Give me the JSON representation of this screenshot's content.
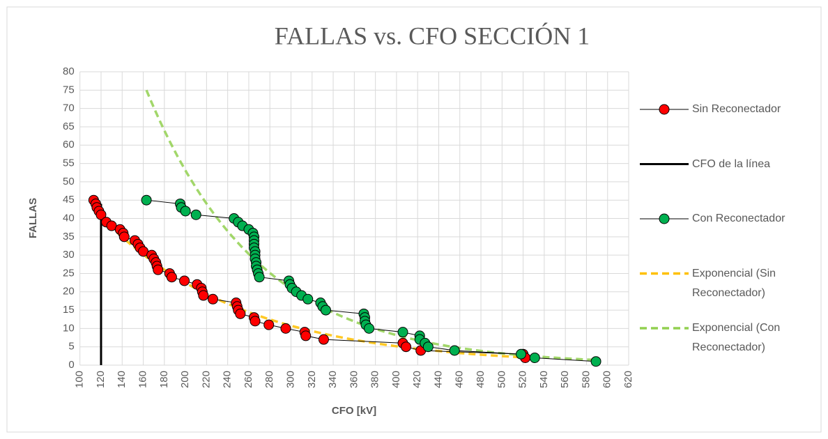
{
  "chart_data": {
    "type": "scatter",
    "title": "FALLAS vs. CFO SECCIÓN 1",
    "x_label": "CFO [kV]",
    "y_label": "FALLAS",
    "xlim": [
      100,
      620
    ],
    "xticks": [
      100,
      120,
      140,
      160,
      180,
      200,
      220,
      240,
      260,
      280,
      300,
      320,
      340,
      360,
      380,
      400,
      420,
      440,
      460,
      480,
      500,
      520,
      540,
      560,
      580,
      600,
      620
    ],
    "ylim": [
      0,
      80
    ],
    "yticks": [
      0,
      5,
      10,
      15,
      20,
      25,
      30,
      35,
      40,
      45,
      50,
      55,
      60,
      65,
      70,
      75,
      80
    ],
    "grid": true,
    "legend": "right",
    "series": [
      {
        "name": "Sin Reconectador",
        "color": "#ff0000",
        "markers": true,
        "x": [
          113,
          115,
          116,
          118,
          120,
          125,
          130,
          138,
          141,
          142,
          152,
          155,
          157,
          160,
          168,
          170,
          172,
          173,
          174,
          185,
          187,
          199,
          211,
          215,
          216,
          217,
          226,
          248,
          249,
          250,
          252,
          265,
          266,
          279,
          295,
          313,
          314,
          331,
          406,
          409,
          423,
          520,
          522
        ],
        "values": [
          45,
          44,
          43,
          42,
          41,
          39,
          38,
          37,
          36,
          35,
          34,
          33,
          32,
          31,
          30,
          29,
          28,
          27,
          26,
          25,
          24,
          23,
          22,
          21,
          20,
          19,
          18,
          17,
          16,
          15,
          14,
          13,
          12,
          11,
          10,
          9,
          8,
          7,
          6,
          5,
          4,
          3,
          2
        ],
        "trendline": {
          "type": "exponential",
          "name": "Exponencial (Sin Reconectador)",
          "color": "#ffc000"
        }
      },
      {
        "name": "CFO de la línea",
        "color": "#000000",
        "markers": false,
        "x": [
          120,
          120
        ],
        "values": [
          0,
          44
        ]
      },
      {
        "name": "Con Reconectador",
        "color": "#00b050",
        "markers": true,
        "x": [
          163,
          195,
          196,
          200,
          210,
          246,
          250,
          254,
          260,
          264,
          265,
          265,
          265,
          265,
          266,
          266,
          266,
          267,
          267,
          268,
          269,
          270,
          298,
          299,
          301,
          305,
          310,
          316,
          328,
          330,
          333,
          369,
          370,
          370,
          371,
          374,
          406,
          422,
          422,
          427,
          430,
          455,
          518,
          531,
          589
        ],
        "values": [
          45,
          44,
          43,
          42,
          41,
          40,
          39,
          38,
          37,
          36,
          35,
          34,
          33,
          32,
          31,
          30,
          29,
          28,
          27,
          26,
          25,
          24,
          23,
          22,
          21,
          20,
          19,
          18,
          17,
          16,
          15,
          14,
          13,
          12,
          11,
          10,
          9,
          8,
          7,
          6,
          5,
          4,
          3,
          2,
          1
        ],
        "trendline": {
          "type": "exponential",
          "name": "Exponencial (Con Reconectador)",
          "color": "#92d050"
        }
      }
    ]
  }
}
